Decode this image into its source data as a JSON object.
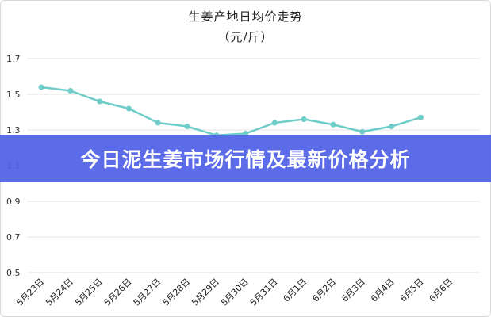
{
  "banner": {
    "text": "今日泥生姜市场行情及最新价格分析"
  },
  "chart_data": {
    "type": "line",
    "title": "生姜产地日均价走势",
    "subtitle": "（元/斤）",
    "xlabel": "",
    "ylabel": "",
    "categories": [
      "5月23日",
      "5月24日",
      "5月25日",
      "5月26日",
      "5月27日",
      "5月28日",
      "5月29日",
      "5月30日",
      "5月31日",
      "6月1日",
      "6月2日",
      "6月3日",
      "6月4日",
      "6月5日",
      "6月6日"
    ],
    "series": [
      {
        "values": [
          1.54,
          1.52,
          1.46,
          1.42,
          1.34,
          1.32,
          1.27,
          1.28,
          1.34,
          1.36,
          1.33,
          1.29,
          1.32,
          1.37,
          null
        ]
      }
    ],
    "yticks": [
      "0.5",
      "0.7",
      "0.9",
      "1.1",
      "1.3",
      "1.5",
      "1.7"
    ],
    "ylim": [
      0.5,
      1.7
    ],
    "grid": true,
    "legend": "none",
    "colors": {
      "line": "#6fcdc9",
      "grid": "#e3e3e3"
    }
  }
}
